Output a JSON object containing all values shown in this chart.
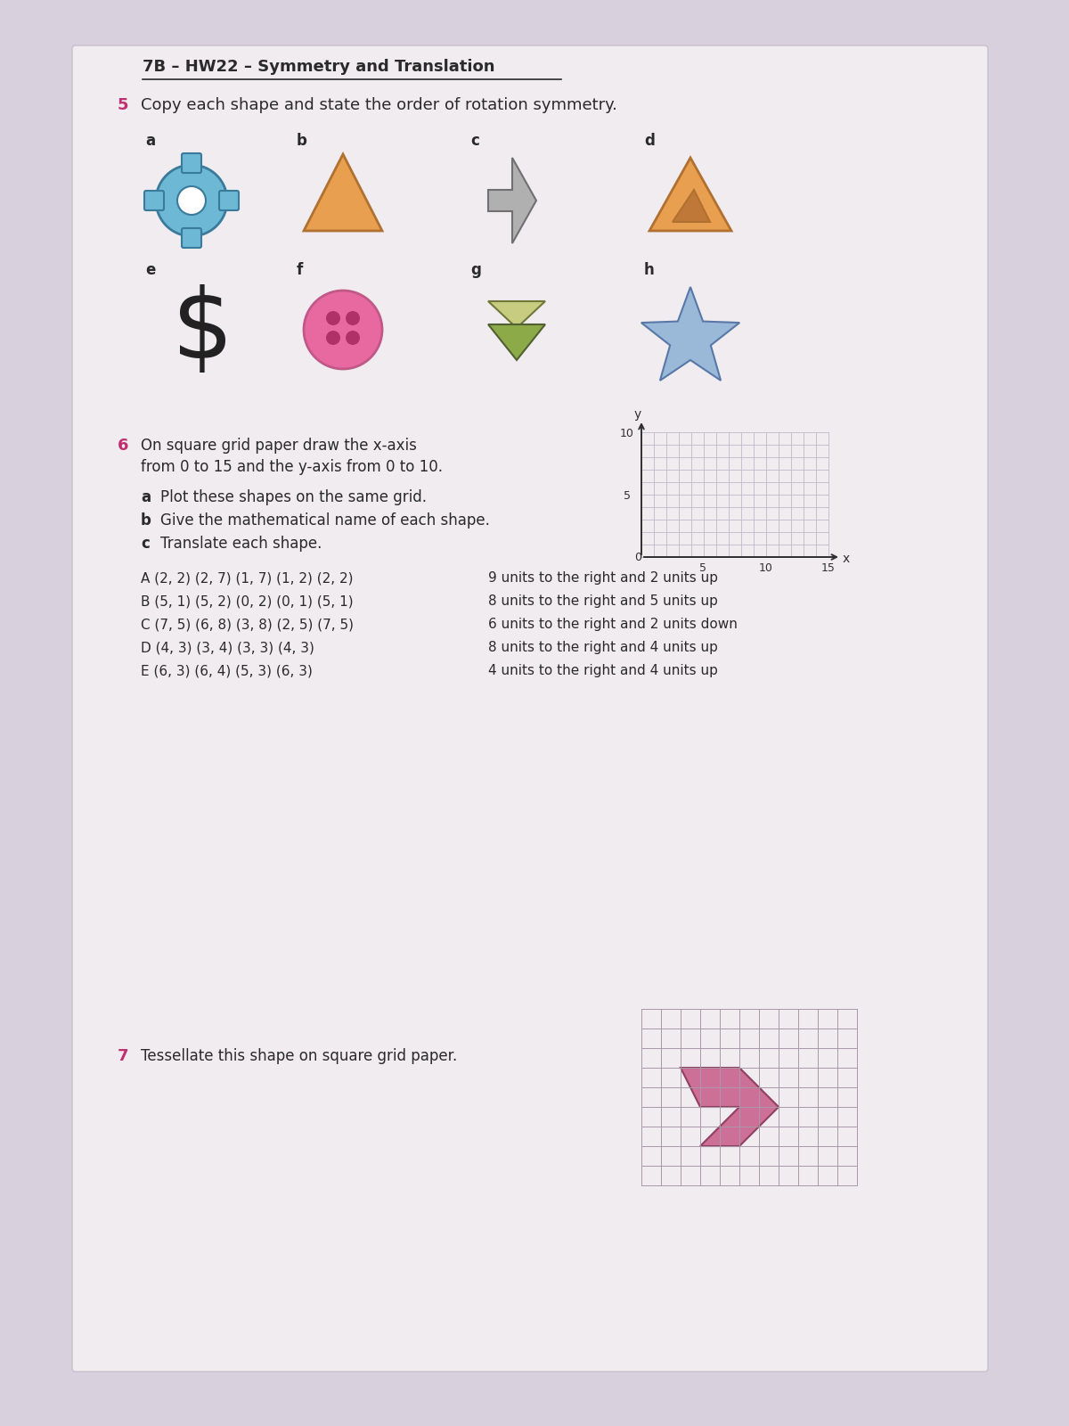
{
  "title": "7B – HW22 – Symmetry and Translation",
  "q5_label": "5",
  "q5_text": "Copy each shape and state the order of rotation symmetry.",
  "q6_label": "6",
  "q6_line1": "On square grid paper draw the x-axis",
  "q6_line2": "from 0 to 15 and the y-axis from 0 to 10.",
  "q6a_label": "a",
  "q6a_text": "Plot these shapes on the same grid.",
  "q6b_label": "b",
  "q6b_text": "Give the mathematical name of each shape.",
  "q6c_label": "c",
  "q6c_text": "Translate each shape.",
  "q7_label": "7",
  "q7_text": "Tessellate this shape on square grid paper.",
  "shape_data_left": [
    "A (2, 2) (2, 7) (1, 7) (1, 2) (2, 2)",
    "B (5, 1) (5, 2) (0, 2) (0, 1) (5, 1)",
    "C (7, 5) (6, 8) (3, 8) (2, 5) (7, 5)",
    "D (4, 3) (3, 4) (3, 3) (4, 3)",
    "E (6, 3) (6, 4) (5, 3) (6, 3)"
  ],
  "shape_data_right": [
    "9 units to the right and 2 units up",
    "8 units to the right and 5 units up",
    "6 units to the right and 2 units down",
    "8 units to the right and 4 units up",
    "4 units to the right and 4 units up"
  ],
  "background_color": "#d8d0dc",
  "paper_color": "#f0ecf0",
  "text_color": "#2a2a2a",
  "bold_color": "#c03070",
  "grid_color": "#c0b8c8",
  "a_fill": "#6db8d4",
  "a_stroke": "#3a7a9b",
  "b_fill": "#e8a050",
  "b_stroke": "#b07030",
  "c_fill": "#b0b0b0",
  "c_stroke": "#707070",
  "d_fill": "#e8a050",
  "d_stroke": "#b07030",
  "d_inner": "#c07838",
  "f_fill": "#e868a0",
  "f_dot": "#b03068",
  "g_fill1": "#c8cc80",
  "g_fill2": "#8caa48",
  "h_fill": "#9ab8d8",
  "h_stroke": "#5878a8",
  "tess_fill": "#cc7098",
  "tess_stroke": "#904060"
}
